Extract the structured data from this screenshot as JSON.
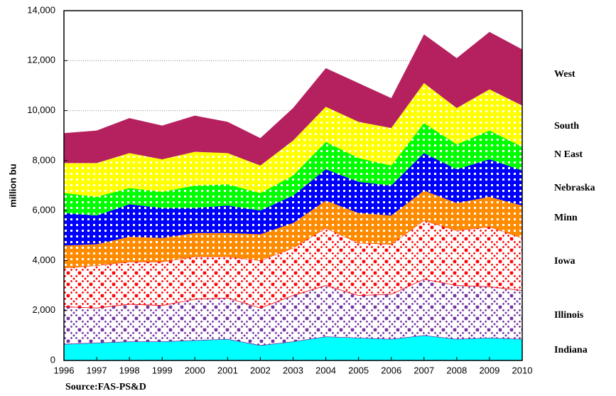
{
  "chart_data": {
    "type": "stacked-area",
    "y_label": "million bu",
    "source": "Source:FAS-PS&D",
    "x": [
      1996,
      1997,
      1998,
      1999,
      2000,
      2001,
      2002,
      2003,
      2004,
      2005,
      2006,
      2007,
      2008,
      2009,
      2010
    ],
    "xlim": [
      1996,
      2010
    ],
    "xticks": [
      1996,
      1997,
      1998,
      1999,
      2000,
      2001,
      2002,
      2003,
      2004,
      2005,
      2006,
      2007,
      2008,
      2009,
      2010
    ],
    "ylim": [
      0,
      14000
    ],
    "yticks": [
      0,
      {
        "value": 2000,
        "label": "2,000"
      },
      {
        "value": 4000,
        "label": "4,000"
      },
      {
        "value": 6000,
        "label": "6,000"
      },
      {
        "value": 8000,
        "label": "8,000"
      },
      {
        "value": 10000,
        "label": "10,000"
      },
      {
        "value": 12000,
        "label": "12,000"
      },
      {
        "value": 14000,
        "label": "14,000"
      }
    ],
    "grid": true,
    "series": [
      {
        "name": "Indiana",
        "color": "#00ffff",
        "pattern": "solid",
        "values": [
          650,
          700,
          750,
          750,
          800,
          850,
          600,
          750,
          950,
          900,
          850,
          1000,
          850,
          900,
          850
        ]
      },
      {
        "name": "Illinois",
        "color": "#7030a0",
        "pattern": "crosshatch",
        "values": [
          1500,
          1400,
          1500,
          1450,
          1650,
          1650,
          1500,
          1850,
          2050,
          1700,
          1800,
          2250,
          2150,
          2050,
          1950
        ]
      },
      {
        "name": "Iowa",
        "color": "#ff0000",
        "pattern": "crosshatch",
        "values": [
          1550,
          1700,
          1700,
          1750,
          1700,
          1650,
          1900,
          1900,
          2300,
          2100,
          2000,
          2350,
          2200,
          2400,
          2100
        ]
      },
      {
        "name": "Minn",
        "color": "#ff8c00",
        "pattern": "dots",
        "values": [
          900,
          850,
          1000,
          950,
          950,
          950,
          1050,
          1000,
          1100,
          1200,
          1150,
          1200,
          1100,
          1200,
          1300
        ]
      },
      {
        "name": "Nebraska",
        "color": "#0000ff",
        "pattern": "dots",
        "values": [
          1300,
          1150,
          1300,
          1200,
          1000,
          1100,
          950,
          1100,
          1250,
          1250,
          1200,
          1500,
          1350,
          1500,
          1400
        ]
      },
      {
        "name": "N East",
        "color": "#00ff00",
        "pattern": "dots",
        "values": [
          800,
          750,
          650,
          650,
          900,
          850,
          700,
          800,
          1100,
          950,
          800,
          1200,
          1000,
          1150,
          950
        ]
      },
      {
        "name": "South",
        "color": "#ffff00",
        "pattern": "dots",
        "values": [
          1200,
          1350,
          1400,
          1300,
          1350,
          1250,
          1100,
          1400,
          1400,
          1450,
          1500,
          1600,
          1450,
          1650,
          1650
        ]
      },
      {
        "name": "West",
        "color": "#b5215e",
        "pattern": "solid",
        "values": [
          1200,
          1300,
          1400,
          1350,
          1450,
          1250,
          1100,
          1300,
          1550,
          1550,
          1200,
          1950,
          2000,
          2300,
          2250
        ]
      }
    ]
  }
}
